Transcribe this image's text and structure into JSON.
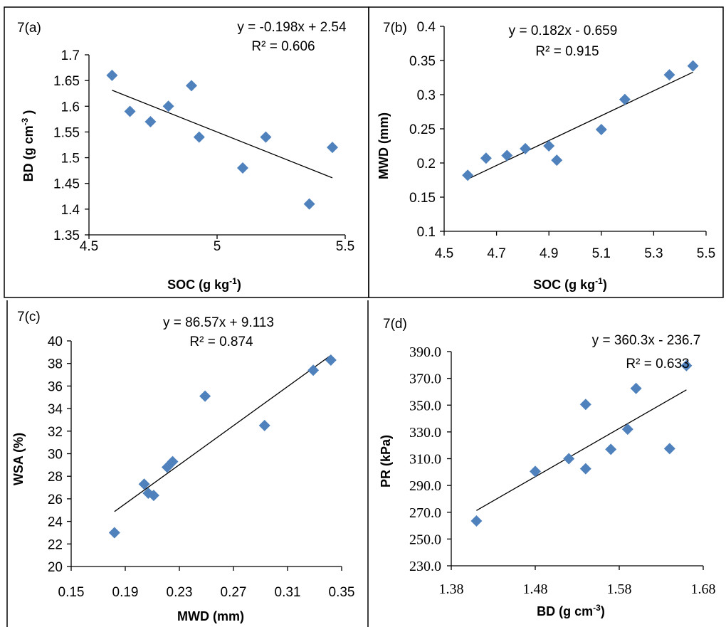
{
  "chart_data": [
    {
      "type": "scatter",
      "panel_label": "7(a)",
      "equation": "y = -0.198x + 2.54",
      "r2": "R² = 0.606",
      "xlabel": "SOC (g kg",
      "xlabel_sup": "-1",
      "xlabel_end": ")",
      "ylabel": "BD (g cm",
      "ylabel_sup": "-3",
      "ylabel_end": " )",
      "xlim": [
        4.5,
        5.5
      ],
      "ylim": [
        1.35,
        1.7
      ],
      "xticks": [
        "4.5",
        "5",
        "5.5"
      ],
      "yticks": [
        "1.35",
        "1.4",
        "1.45",
        "1.5",
        "1.55",
        "1.6",
        "1.65",
        "1.7"
      ],
      "trend": {
        "slope": -0.198,
        "intercept": 2.54,
        "x0": 4.59,
        "x1": 5.45
      },
      "points": [
        [
          4.59,
          1.66
        ],
        [
          4.66,
          1.59
        ],
        [
          4.74,
          1.57
        ],
        [
          4.81,
          1.6
        ],
        [
          4.9,
          1.64
        ],
        [
          4.93,
          1.54
        ],
        [
          5.1,
          1.48
        ],
        [
          5.19,
          1.54
        ],
        [
          5.36,
          1.41
        ],
        [
          5.45,
          1.52
        ]
      ]
    },
    {
      "type": "scatter",
      "panel_label": "7(b)",
      "equation": "y = 0.182x - 0.659",
      "r2": "R² = 0.915",
      "xlabel": "SOC (g kg",
      "xlabel_sup": "-1",
      "xlabel_end": ")",
      "ylabel": "MWD (mm)",
      "xlim": [
        4.5,
        5.5
      ],
      "ylim": [
        0.1,
        0.4
      ],
      "xticks": [
        "4.5",
        "4.7",
        "4.9",
        "5.1",
        "5.3",
        "5.5"
      ],
      "yticks": [
        "0.1",
        "0.15",
        "0.2",
        "0.25",
        "0.3",
        "0.35",
        "0.4"
      ],
      "trend": {
        "slope": 0.182,
        "intercept": -0.659,
        "x0": 4.59,
        "x1": 5.45
      },
      "points": [
        [
          4.59,
          0.182
        ],
        [
          4.66,
          0.207
        ],
        [
          4.74,
          0.211
        ],
        [
          4.81,
          0.221
        ],
        [
          4.9,
          0.225
        ],
        [
          4.93,
          0.204
        ],
        [
          5.1,
          0.249
        ],
        [
          5.19,
          0.293
        ],
        [
          5.36,
          0.329
        ],
        [
          5.45,
          0.342
        ]
      ]
    },
    {
      "type": "scatter",
      "panel_label": "7(c)",
      "equation": "y = 86.57x + 9.113",
      "r2": "R² = 0.874",
      "xlabel": "MWD (mm)",
      "ylabel": "WSA (%)",
      "xlim": [
        0.15,
        0.35
      ],
      "ylim": [
        20,
        40
      ],
      "xticks": [
        "0.15",
        "0.19",
        "0.23",
        "0.27",
        "0.31",
        "0.35"
      ],
      "yticks": [
        "20",
        "22",
        "24",
        "26",
        "28",
        "30",
        "32",
        "34",
        "36",
        "38",
        "40"
      ],
      "trend": {
        "slope": 86.57,
        "intercept": 9.113,
        "x0": 0.182,
        "x1": 0.342
      },
      "points": [
        [
          0.182,
          23.0
        ],
        [
          0.204,
          27.3
        ],
        [
          0.207,
          26.5
        ],
        [
          0.211,
          26.3
        ],
        [
          0.221,
          28.8
        ],
        [
          0.225,
          29.3
        ],
        [
          0.249,
          35.1
        ],
        [
          0.293,
          32.5
        ],
        [
          0.329,
          37.4
        ],
        [
          0.342,
          38.3
        ]
      ]
    },
    {
      "type": "scatter",
      "panel_label": "7(d)",
      "equation": "y = 360.3x - 236.7",
      "r2": "R² = 0.633",
      "xlabel": "BD (g cm",
      "xlabel_sup": "-3",
      "xlabel_end": ")",
      "ylabel": "PR (kPa)",
      "xlim": [
        1.38,
        1.68
      ],
      "ylim": [
        230,
        390
      ],
      "xticks": [
        "1.38",
        "1.48",
        "1.58",
        "1.68"
      ],
      "yticks": [
        "230.0",
        "250.0",
        "270.0",
        "290.0",
        "310.0",
        "330.0",
        "350.0",
        "370.0",
        "390.0"
      ],
      "trend": {
        "slope": 360.3,
        "intercept": -236.7,
        "x0": 1.41,
        "x1": 1.66
      },
      "points": [
        [
          1.41,
          263.5
        ],
        [
          1.48,
          300.5
        ],
        [
          1.52,
          310
        ],
        [
          1.54,
          302.5
        ],
        [
          1.54,
          350.5
        ],
        [
          1.57,
          317
        ],
        [
          1.59,
          332
        ],
        [
          1.6,
          362.5
        ],
        [
          1.64,
          317.5
        ],
        [
          1.66,
          379.5
        ]
      ]
    }
  ],
  "colors": {
    "marker": "#4f81bd",
    "trendline": "#000000",
    "border": "#000000"
  }
}
